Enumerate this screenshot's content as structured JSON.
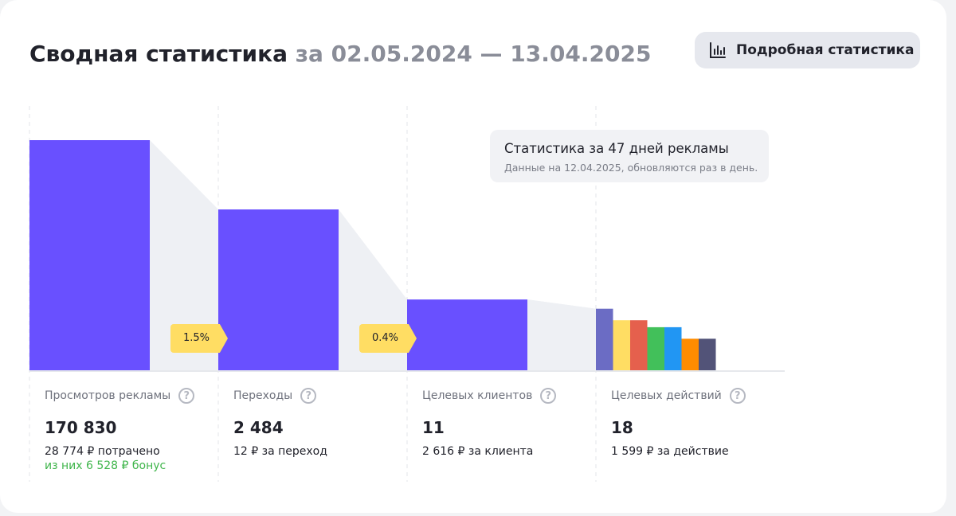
{
  "header": {
    "title": "Сводная статистика",
    "date_range": "за 02.05.2024 — 13.04.2025",
    "detail_button": "Подробная статистика",
    "detail_icon": "bar-chart-icon"
  },
  "tooltip": {
    "title": "Статистика за 47 дней рекламы",
    "note": "Данные на 12.04.2025, обновляются раз в день."
  },
  "conversions": [
    "1.5%",
    "0.4%"
  ],
  "colors": {
    "bar": "#6950ff",
    "funnel_fill": "#eef0f4",
    "badge": "#ffdd63",
    "bonus": "#3fb54b",
    "action_bars": [
      "#6b6cc4",
      "#ffdd63",
      "#e5604d",
      "#42c05a",
      "#2196f3",
      "#ff8c00",
      "#525378"
    ]
  },
  "stats": [
    {
      "label": "Просмотров рекламы",
      "value": "170 830",
      "sub": "28 774 ₽ потрачено",
      "bonus": "из них 6 528 ₽ бонус"
    },
    {
      "label": "Переходы",
      "value": "2 484",
      "sub": "12 ₽ за переход"
    },
    {
      "label": "Целевых клиентов",
      "value": "11",
      "sub": "2 616 ₽ за клиента"
    },
    {
      "label": "Целевых действий",
      "value": "18",
      "sub": "1 599 ₽ за действие"
    }
  ],
  "chart_data": {
    "type": "bar",
    "categories": [
      "Просмотров рекламы",
      "Переходы",
      "Целевых клиентов",
      "Целевых действий"
    ],
    "values": [
      170830,
      2484,
      11,
      18
    ],
    "display_levels": [
      1.0,
      0.7,
      0.31,
      0.27
    ],
    "action_breakdown_levels": [
      0.27,
      0.22,
      0.22,
      0.19,
      0.19,
      0.14,
      0.14
    ]
  }
}
